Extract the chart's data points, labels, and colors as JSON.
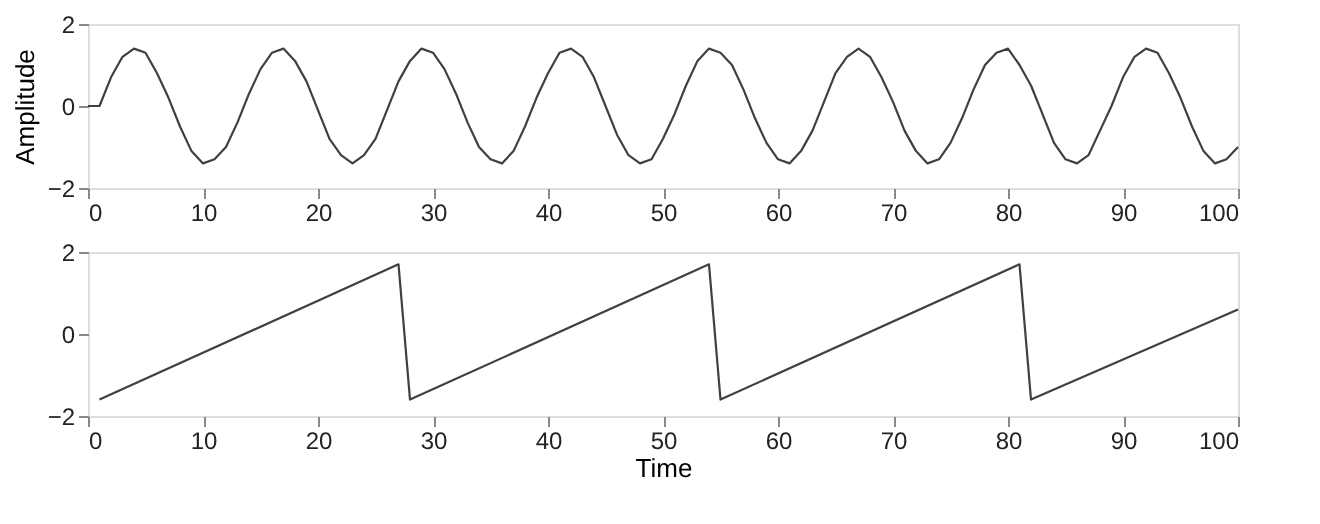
{
  "chart_data": [
    {
      "type": "line",
      "ylabel": "Amplitude",
      "xlim": [
        0,
        100
      ],
      "ylim": [
        -2,
        2
      ],
      "xticks": [
        0,
        10,
        20,
        30,
        40,
        50,
        60,
        70,
        80,
        90,
        100
      ],
      "yticks": [
        -2,
        0,
        2
      ],
      "grid": false,
      "marker": "none",
      "line_style": "solid",
      "x": [
        0,
        1,
        2,
        3,
        4,
        5,
        6,
        7,
        8,
        9,
        10,
        11,
        12,
        13,
        14,
        15,
        16,
        17,
        18,
        19,
        20,
        21,
        22,
        23,
        24,
        25,
        26,
        27,
        28,
        29,
        30,
        31,
        32,
        33,
        34,
        35,
        36,
        37,
        38,
        39,
        40,
        41,
        42,
        43,
        44,
        45,
        46,
        47,
        48,
        49,
        50,
        51,
        52,
        53,
        54,
        55,
        56,
        57,
        58,
        59,
        60,
        61,
        62,
        63,
        64,
        65,
        66,
        67,
        68,
        69,
        70,
        71,
        72,
        73,
        74,
        75,
        76,
        77,
        78,
        79,
        80,
        81,
        82,
        83,
        84,
        85,
        86,
        87,
        88,
        89,
        90,
        91,
        92,
        93,
        94,
        95,
        96,
        97,
        98,
        99,
        100
      ],
      "series": [
        {
          "color": "#404040",
          "values": [
            0,
            0,
            0.7,
            1.2,
            1.4,
            1.3,
            0.8,
            0.2,
            -0.5,
            -1.1,
            -1.4,
            -1.3,
            -1.0,
            -0.4,
            0.3,
            0.9,
            1.3,
            1.4,
            1.1,
            0.6,
            -0.1,
            -0.8,
            -1.2,
            -1.4,
            -1.2,
            -0.8,
            -0.1,
            0.6,
            1.1,
            1.4,
            1.3,
            0.9,
            0.3,
            -0.4,
            -1.0,
            -1.3,
            -1.4,
            -1.1,
            -0.5,
            0.2,
            0.8,
            1.3,
            1.4,
            1.2,
            0.7,
            0.0,
            -0.7,
            -1.2,
            -1.4,
            -1.3,
            -0.8,
            -0.2,
            0.5,
            1.1,
            1.4,
            1.3,
            1.0,
            0.4,
            -0.3,
            -0.9,
            -1.3,
            -1.4,
            -1.1,
            -0.6,
            0.1,
            0.8,
            1.2,
            1.4,
            1.2,
            0.7,
            0.1,
            -0.6,
            -1.1,
            -1.4,
            -1.3,
            -0.9,
            -0.3,
            0.4,
            1.0,
            1.3,
            1.4,
            1.0,
            0.5,
            -0.2,
            -0.9,
            -1.3,
            -1.4,
            -1.2,
            -0.6,
            0.0,
            0.7,
            1.2,
            1.4,
            1.3,
            0.8,
            0.2,
            -0.5,
            -1.1,
            -1.4,
            -1.3,
            -1.0
          ]
        }
      ]
    },
    {
      "type": "line",
      "xlabel": "Time",
      "xlim": [
        0,
        100
      ],
      "ylim": [
        -2,
        2
      ],
      "xticks": [
        0,
        10,
        20,
        30,
        40,
        50,
        60,
        70,
        80,
        90,
        100
      ],
      "yticks": [
        -2,
        0,
        2
      ],
      "grid": false,
      "marker": "none",
      "line_style": "solid",
      "x": [
        1,
        27,
        28,
        54,
        55,
        81,
        82,
        100
      ],
      "series": [
        {
          "color": "#404040",
          "values": [
            -1.6,
            1.7,
            -1.6,
            1.7,
            -1.6,
            1.7,
            -1.6,
            0.6
          ]
        }
      ]
    }
  ]
}
